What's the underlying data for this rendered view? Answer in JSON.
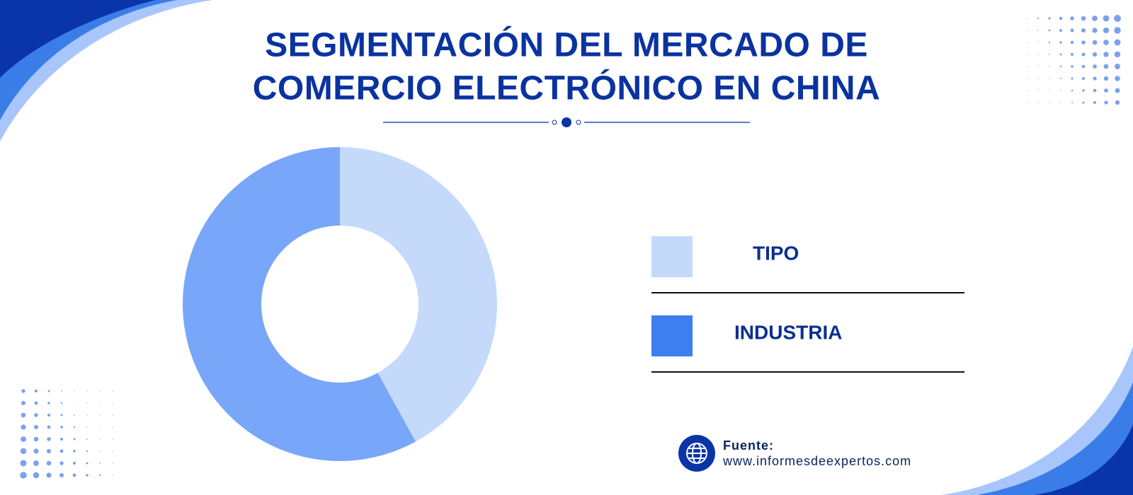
{
  "chart_data": {
    "type": "donut",
    "title": [
      "SEGMENTACIÓN DEL MERCADO DE",
      "COMERCIO ELECTRÓNICO EN CHINA"
    ],
    "series": [
      {
        "name": "TIPO",
        "color": "#c5dafa",
        "legend_color": "#c5dafa",
        "values": [
          42
        ]
      },
      {
        "name": "INDUSTRIA",
        "color": "#78a6f8",
        "legend_color": "#3d7fee",
        "values": [
          58
        ]
      }
    ]
  },
  "source_label": "Fuente:",
  "source_url": "www.informesdeexpertos.com"
}
